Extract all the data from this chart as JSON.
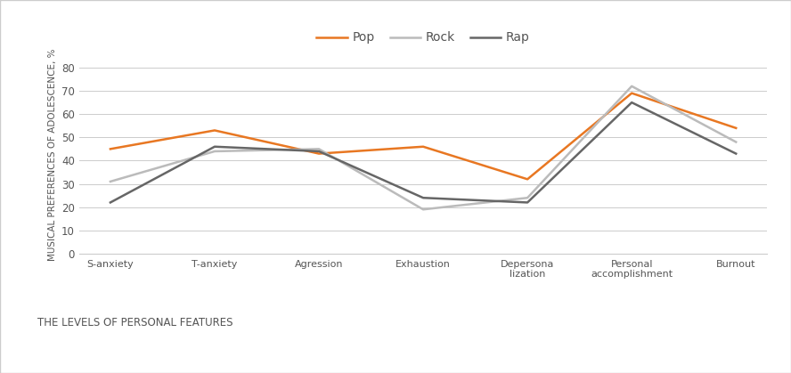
{
  "categories": [
    "S-anxiety",
    "T-anxiety",
    "Agression",
    "Exhaustion",
    "Depersona\nlization",
    "Personal\naccomplishment",
    "Burnout"
  ],
  "series": {
    "Pop": {
      "values": [
        45,
        53,
        43,
        46,
        32,
        69,
        54
      ],
      "color": "#E87722",
      "linewidth": 1.8
    },
    "Rock": {
      "values": [
        31,
        44,
        45,
        19,
        24,
        72,
        48
      ],
      "color": "#BBBBBB",
      "linewidth": 1.8
    },
    "Rap": {
      "values": [
        22,
        46,
        44,
        24,
        22,
        65,
        43
      ],
      "color": "#666666",
      "linewidth": 1.8
    }
  },
  "ylabel": "MUSICAL PREFERENCES OF ADOLESCENCE, %",
  "xlabel": "THE LEVELS OF PERSONAL FEATURES",
  "ylim": [
    0,
    85
  ],
  "yticks": [
    0,
    10,
    20,
    30,
    40,
    50,
    60,
    70,
    80
  ],
  "background_color": "#FFFFFF",
  "grid_color": "#CCCCCC",
  "legend_order": [
    "Pop",
    "Rock",
    "Rap"
  ]
}
